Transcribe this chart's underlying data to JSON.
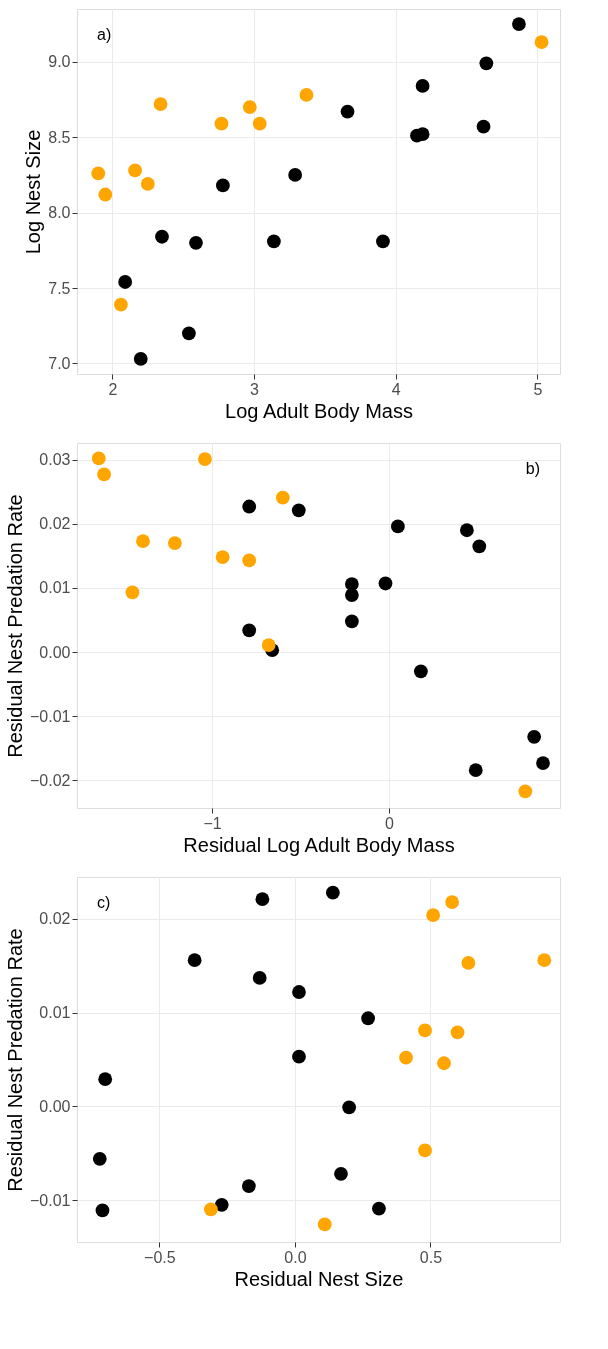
{
  "chart_data": [
    {
      "type": "scatter",
      "xlabel": "Log Adult Body Mass",
      "ylabel": "Log Nest Size",
      "annotations": [
        "a)"
      ],
      "grid": true,
      "marker": "circle",
      "legend": false,
      "xlim": [
        1.75,
        5.16
      ],
      "ylim": [
        6.93,
        9.35
      ],
      "xticks": [
        2,
        3,
        4,
        5
      ],
      "yticks": [
        {
          "value": 7,
          "label": "7.0"
        },
        7.5,
        {
          "value": 8,
          "label": "8.0"
        },
        8.5,
        {
          "value": 9,
          "label": "9.0"
        }
      ],
      "series": [
        {
          "color": "#000000",
          "x": [
            2.09,
            2.2,
            2.54,
            2.35,
            2.59,
            2.78,
            3.14,
            3.29,
            3.66,
            3.91,
            4.15,
            4.19,
            4.19,
            4.62,
            4.64,
            4.87
          ],
          "values": [
            7.54,
            7.03,
            7.2,
            7.84,
            7.8,
            8.18,
            7.81,
            8.25,
            8.67,
            7.81,
            8.51,
            8.52,
            8.84,
            8.57,
            8.99,
            9.25
          ]
        },
        {
          "color": "#ffa500",
          "x": [
            1.9,
            1.95,
            2.16,
            2.25,
            2.34,
            2.06,
            2.77,
            2.97,
            3.04,
            3.37,
            5.03
          ],
          "values": [
            8.26,
            8.12,
            8.28,
            8.19,
            8.72,
            7.39,
            8.59,
            8.7,
            8.59,
            8.78,
            9.13
          ]
        }
      ]
    },
    {
      "type": "scatter",
      "xlabel": "Residual Log Adult Body Mass",
      "ylabel": "Residual Nest Predation Rate",
      "annotations": [
        "b)"
      ],
      "grid": true,
      "marker": "circle",
      "legend": false,
      "xlim": [
        -1.763,
        0.966
      ],
      "ylim": [
        -0.0243,
        0.0326
      ],
      "xticks": [
        {
          "value": -1,
          "label": "−1"
        },
        0
      ],
      "yticks": [
        {
          "value": -0.02,
          "label": "−0.02"
        },
        {
          "value": -0.01,
          "label": "−0.01"
        },
        {
          "value": 0,
          "label": "0.00"
        },
        {
          "value": 0.01,
          "label": "0.01"
        },
        {
          "value": 0.02,
          "label": "0.02"
        },
        {
          "value": 0.03,
          "label": "0.03"
        }
      ],
      "series": [
        {
          "color": "#000000",
          "x": [
            -0.79,
            -0.51,
            0.05,
            0.44,
            0.51,
            -0.21,
            -0.02,
            -0.21,
            -0.21,
            -0.79,
            -0.66,
            0.18,
            0.49,
            0.82,
            0.87
          ],
          "values": [
            0.0227,
            0.0221,
            0.0196,
            0.019,
            0.0165,
            0.0106,
            0.0107,
            0.0089,
            0.0048,
            0.0034,
            0.0003,
            -0.003,
            -0.0184,
            -0.0132,
            -0.0173
          ]
        },
        {
          "color": "#ffa500",
          "x": [
            -1.64,
            -1.61,
            -1.04,
            -0.6,
            -1.39,
            -1.21,
            -0.94,
            -0.79,
            -1.45,
            -0.68,
            0.77
          ],
          "values": [
            0.0302,
            0.0277,
            0.0301,
            0.0241,
            0.0173,
            0.017,
            0.0148,
            0.0143,
            0.0093,
            0.0011,
            -0.0217
          ]
        }
      ]
    },
    {
      "type": "scatter",
      "xlabel": "Residual Nest Size",
      "ylabel": "Residual Nest Predation Rate",
      "annotations": [
        "c)"
      ],
      "grid": true,
      "marker": "circle",
      "legend": false,
      "xlim": [
        -0.804,
        0.978
      ],
      "ylim": [
        -0.01447,
        0.02447
      ],
      "xticks": [
        {
          "value": -0.5,
          "label": "−0.5"
        },
        {
          "value": 0,
          "label": "0.0"
        },
        0.5
      ],
      "yticks": [
        {
          "value": -0.01,
          "label": "−0.01"
        },
        {
          "value": 0,
          "label": "0.00"
        },
        {
          "value": 0.01,
          "label": "0.01"
        },
        {
          "value": 0.02,
          "label": "0.02"
        }
      ],
      "series": [
        {
          "color": "#000000",
          "x": [
            -0.12,
            0.14,
            -0.37,
            -0.13,
            0.015,
            0.27,
            0.015,
            -0.7,
            0.2,
            -0.72,
            -0.71,
            -0.27,
            -0.17,
            0.17,
            0.31
          ],
          "values": [
            0.0221,
            0.0228,
            0.0156,
            0.0137,
            0.0122,
            0.0094,
            0.0053,
            0.0029,
            -0.0001,
            -0.0056,
            -0.0111,
            -0.0105,
            -0.0085,
            -0.0072,
            -0.0109
          ]
        },
        {
          "color": "#ffa500",
          "x": [
            0.58,
            0.51,
            0.64,
            0.92,
            0.48,
            0.6,
            0.41,
            0.55,
            0.48,
            -0.31,
            0.11
          ],
          "values": [
            0.0218,
            0.0204,
            0.0153,
            0.0156,
            0.0081,
            0.0079,
            0.0052,
            0.0046,
            -0.0047,
            -0.011,
            -0.0126
          ]
        }
      ]
    }
  ]
}
